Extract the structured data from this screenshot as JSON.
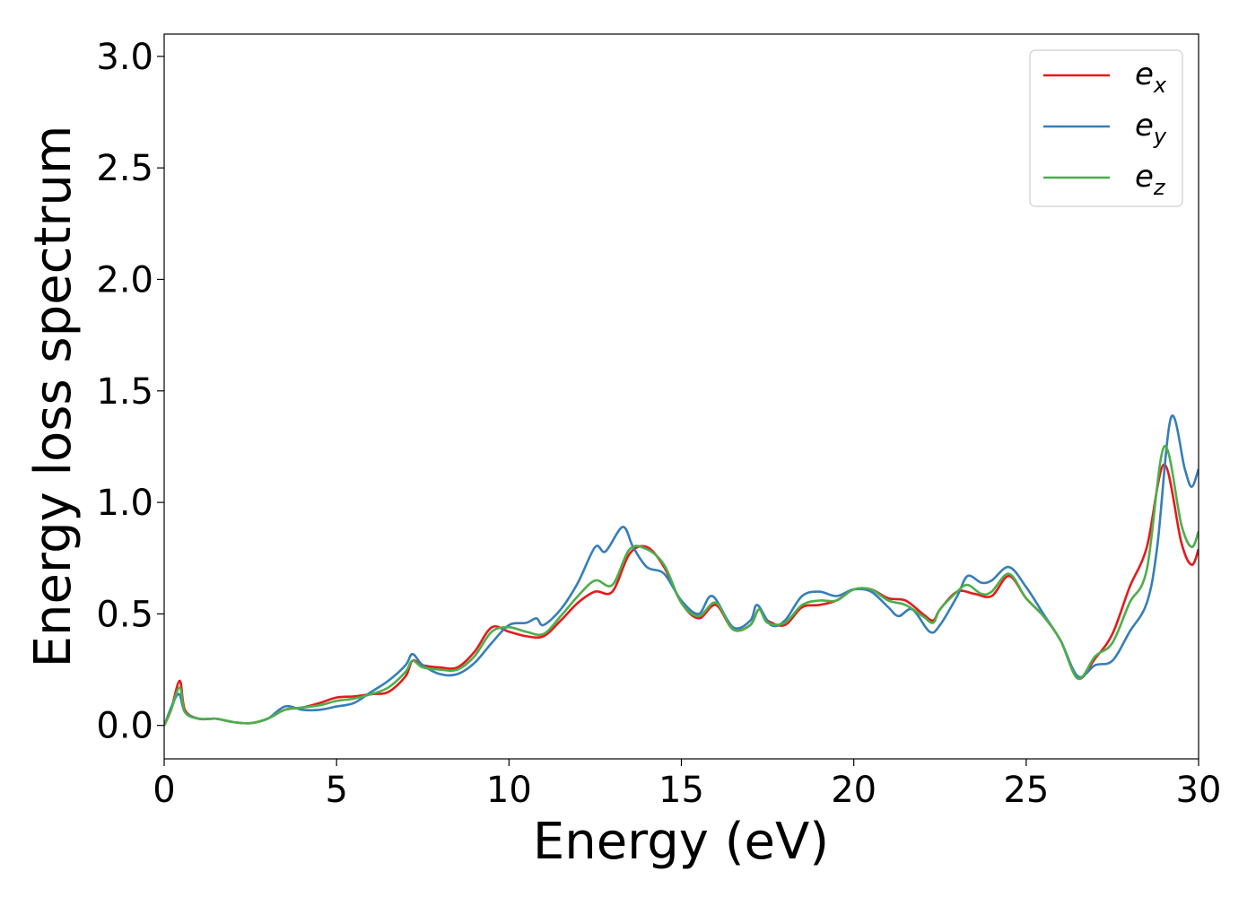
{
  "chart_data": {
    "type": "line",
    "title": "",
    "xlabel": "Energy (eV)",
    "ylabel": "Energy loss spectrum",
    "xlim": [
      0,
      30
    ],
    "ylim": [
      -0.15,
      3.1
    ],
    "xticks": [
      0,
      5,
      10,
      15,
      20,
      25,
      30
    ],
    "xtick_labels": [
      "0",
      "5",
      "10",
      "15",
      "20",
      "25",
      "30"
    ],
    "yticks": [
      0.0,
      0.5,
      1.0,
      1.5,
      2.0,
      2.5,
      3.0
    ],
    "ytick_labels": [
      "0.0",
      "0.5",
      "1.0",
      "1.5",
      "2.0",
      "2.5",
      "3.0"
    ],
    "grid": false,
    "legend_position": "top-right",
    "series": [
      {
        "name": "e_x",
        "label_base": "e",
        "label_sub": "x",
        "color": "#e41a1c",
        "x": [
          0,
          0.2,
          0.45,
          0.6,
          1,
          1.5,
          2,
          2.5,
          3,
          3.5,
          4,
          4.5,
          5,
          5.5,
          6,
          6.5,
          7,
          7.2,
          7.5,
          8,
          8.5,
          9,
          9.5,
          10,
          10.5,
          11,
          11.5,
          12,
          12.5,
          13,
          13.5,
          14,
          14.5,
          15,
          15.5,
          16,
          16.5,
          17,
          17.25,
          17.5,
          18,
          18.5,
          19,
          19.5,
          20,
          20.5,
          21,
          21.5,
          22,
          22.3,
          22.5,
          23,
          23.5,
          24,
          24.5,
          25,
          25.5,
          26,
          26.5,
          27,
          27.5,
          28,
          28.5,
          29,
          29.5,
          29.8,
          30
        ],
        "y": [
          0,
          0.07,
          0.2,
          0.07,
          0.03,
          0.03,
          0.015,
          0.01,
          0.03,
          0.07,
          0.08,
          0.1,
          0.125,
          0.13,
          0.14,
          0.15,
          0.22,
          0.29,
          0.27,
          0.26,
          0.26,
          0.33,
          0.44,
          0.42,
          0.4,
          0.4,
          0.47,
          0.55,
          0.6,
          0.6,
          0.77,
          0.8,
          0.71,
          0.55,
          0.48,
          0.54,
          0.43,
          0.45,
          0.52,
          0.47,
          0.45,
          0.53,
          0.54,
          0.56,
          0.61,
          0.61,
          0.57,
          0.56,
          0.5,
          0.47,
          0.52,
          0.6,
          0.59,
          0.58,
          0.67,
          0.57,
          0.49,
          0.38,
          0.21,
          0.3,
          0.41,
          0.62,
          0.8,
          1.17,
          0.82,
          0.72,
          0.79
        ]
      },
      {
        "name": "e_y",
        "label_base": "e",
        "label_sub": "y",
        "color": "#377eb8",
        "x": [
          0,
          0.4,
          0.6,
          1,
          1.5,
          2,
          2.5,
          3,
          3.5,
          4,
          4.5,
          5,
          5.5,
          6,
          6.5,
          7,
          7.2,
          7.5,
          8,
          8.5,
          9,
          9.5,
          10,
          10.5,
          10.8,
          11,
          11.5,
          12,
          12.5,
          12.8,
          13.3,
          13.6,
          14,
          14.5,
          15,
          15.5,
          15.9,
          16.5,
          17,
          17.2,
          17.6,
          18,
          18.5,
          19,
          19.5,
          20,
          20.5,
          21,
          21.3,
          21.7,
          22.2,
          22.5,
          23,
          23.3,
          23.7,
          24,
          24.5,
          25,
          25.5,
          26,
          26.5,
          27,
          27.5,
          28,
          28.5,
          28.8,
          29.2,
          29.6,
          29.8,
          30
        ],
        "y": [
          0,
          0.14,
          0.06,
          0.03,
          0.03,
          0.015,
          0.01,
          0.03,
          0.085,
          0.07,
          0.07,
          0.085,
          0.1,
          0.15,
          0.2,
          0.27,
          0.32,
          0.27,
          0.23,
          0.23,
          0.28,
          0.37,
          0.45,
          0.46,
          0.48,
          0.45,
          0.52,
          0.64,
          0.8,
          0.78,
          0.89,
          0.8,
          0.71,
          0.68,
          0.56,
          0.5,
          0.58,
          0.44,
          0.47,
          0.54,
          0.45,
          0.47,
          0.58,
          0.6,
          0.58,
          0.61,
          0.6,
          0.53,
          0.49,
          0.52,
          0.42,
          0.45,
          0.58,
          0.67,
          0.64,
          0.65,
          0.71,
          0.62,
          0.5,
          0.38,
          0.22,
          0.27,
          0.29,
          0.42,
          0.55,
          0.8,
          1.38,
          1.15,
          1.07,
          1.15
        ]
      },
      {
        "name": "e_z",
        "label_base": "e",
        "label_sub": "z",
        "color": "#4daf4a",
        "x": [
          0,
          0.2,
          0.45,
          0.6,
          1,
          1.5,
          2,
          2.5,
          3,
          3.5,
          4,
          4.5,
          5,
          5.5,
          6,
          6.5,
          7,
          7.2,
          7.5,
          8,
          8.5,
          9,
          9.5,
          10,
          10.5,
          11,
          11.5,
          12,
          12.5,
          13,
          13.5,
          14,
          14.5,
          15,
          15.5,
          16,
          16.5,
          17,
          17.25,
          17.5,
          18,
          18.5,
          19,
          19.5,
          20,
          20.5,
          21,
          21.5,
          22,
          22.3,
          22.5,
          23,
          23.3,
          23.7,
          24,
          24.5,
          25,
          25.5,
          26,
          26.5,
          27,
          27.5,
          28,
          28.5,
          29,
          29.5,
          29.8,
          30
        ],
        "y": [
          0,
          0.07,
          0.17,
          0.06,
          0.03,
          0.03,
          0.015,
          0.01,
          0.03,
          0.07,
          0.08,
          0.09,
          0.11,
          0.12,
          0.14,
          0.17,
          0.24,
          0.29,
          0.26,
          0.25,
          0.25,
          0.31,
          0.42,
          0.44,
          0.42,
          0.41,
          0.49,
          0.58,
          0.65,
          0.63,
          0.79,
          0.79,
          0.72,
          0.55,
          0.49,
          0.55,
          0.43,
          0.45,
          0.52,
          0.46,
          0.46,
          0.54,
          0.56,
          0.56,
          0.61,
          0.61,
          0.56,
          0.54,
          0.49,
          0.46,
          0.52,
          0.6,
          0.63,
          0.59,
          0.6,
          0.68,
          0.57,
          0.49,
          0.38,
          0.21,
          0.31,
          0.37,
          0.55,
          0.7,
          1.25,
          0.9,
          0.8,
          0.87
        ]
      }
    ]
  }
}
